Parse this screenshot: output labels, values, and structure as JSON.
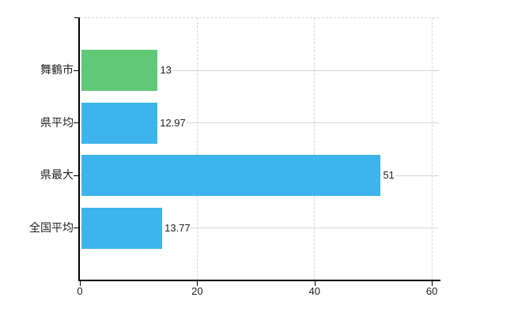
{
  "chart_data": {
    "type": "bar",
    "orientation": "horizontal",
    "title": "",
    "xlabel": "",
    "ylabel": "",
    "categories": [
      "舞鶴市",
      "県平均",
      "県最大",
      "全国平均"
    ],
    "values": [
      13,
      12.97,
      51,
      13.77
    ],
    "value_labels": [
      "13",
      "12.97",
      "51",
      "13.77"
    ],
    "bar_colors": [
      "#61c878",
      "#3db4eb",
      "#3db4eb",
      "#3db4eb"
    ],
    "highlight_color": "#61c878",
    "default_color": "#3db4eb",
    "x_ticks": [
      "0",
      "20",
      "40",
      "60"
    ],
    "x_tick_values": [
      0,
      20,
      40,
      60
    ],
    "xlim": [
      0,
      61.2
    ],
    "grid": "on",
    "legend": "none"
  },
  "style": {
    "axis_color": "#000000",
    "grid_color": "#d6d6d6",
    "text_color": "#222222",
    "background": "#ffffff"
  }
}
